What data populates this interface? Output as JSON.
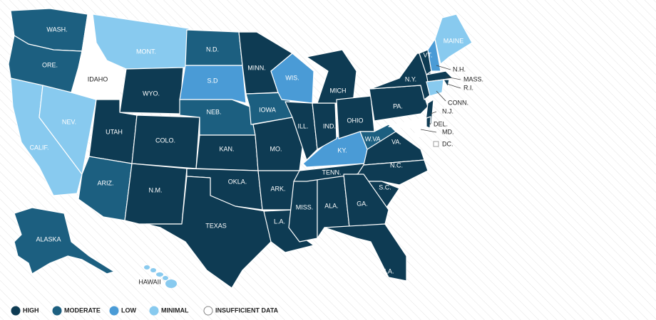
{
  "map": {
    "levels": [
      {
        "name": "HIGH",
        "color": "#0e3b53"
      },
      {
        "name": "MODERATE",
        "color": "#1c5f80"
      },
      {
        "name": "LOW",
        "color": "#4a9bd6"
      },
      {
        "name": "MINIMAL",
        "color": "#88caef"
      },
      {
        "name": "INSUFFICIENT DATA",
        "color": "#ffffff"
      }
    ],
    "states": [
      {
        "label": "WASH.",
        "level": "MODERATE"
      },
      {
        "label": "ORE.",
        "level": "MODERATE"
      },
      {
        "label": "CALIF.",
        "level": "MINIMAL"
      },
      {
        "label": "NEV.",
        "level": "MINIMAL"
      },
      {
        "label": "IDAHO",
        "level": "INSUFFICIENT DATA"
      },
      {
        "label": "MONT.",
        "level": "MINIMAL"
      },
      {
        "label": "WYO.",
        "level": "HIGH"
      },
      {
        "label": "UTAH",
        "level": "HIGH"
      },
      {
        "label": "ARIZ.",
        "level": "MODERATE"
      },
      {
        "label": "COLO.",
        "level": "HIGH"
      },
      {
        "label": "N.M.",
        "level": "HIGH"
      },
      {
        "label": "N.D.",
        "level": "MODERATE"
      },
      {
        "label": "S.D",
        "level": "LOW"
      },
      {
        "label": "NEB.",
        "level": "MODERATE"
      },
      {
        "label": "KAN.",
        "level": "HIGH"
      },
      {
        "label": "OKLA.",
        "level": "HIGH"
      },
      {
        "label": "TEXAS",
        "level": "HIGH"
      },
      {
        "label": "MINN.",
        "level": "HIGH"
      },
      {
        "label": "IOWA",
        "level": "MODERATE"
      },
      {
        "label": "MO.",
        "level": "HIGH"
      },
      {
        "label": "ARK.",
        "level": "HIGH"
      },
      {
        "label": "L.A.",
        "level": "HIGH"
      },
      {
        "label": "WIS.",
        "level": "LOW"
      },
      {
        "label": "ILL.",
        "level": "HIGH"
      },
      {
        "label": "MISS.",
        "level": "HIGH"
      },
      {
        "label": "ALA.",
        "level": "HIGH"
      },
      {
        "label": "TENN.",
        "level": "HIGH"
      },
      {
        "label": "KY.",
        "level": "LOW"
      },
      {
        "label": "IND.",
        "level": "HIGH"
      },
      {
        "label": "MICH",
        "level": "HIGH"
      },
      {
        "label": "OHIO",
        "level": "HIGH"
      },
      {
        "label": "W.VA.",
        "level": "MODERATE"
      },
      {
        "label": "VA.",
        "level": "HIGH"
      },
      {
        "label": "N.C.",
        "level": "HIGH"
      },
      {
        "label": "S.C.",
        "level": "HIGH"
      },
      {
        "label": "GA.",
        "level": "HIGH"
      },
      {
        "label": "FLA.",
        "level": "HIGH"
      },
      {
        "label": "PA.",
        "level": "HIGH"
      },
      {
        "label": "N.Y.",
        "level": "HIGH"
      },
      {
        "label": "N.J.",
        "level": "HIGH"
      },
      {
        "label": "MD.",
        "level": "INSUFFICIENT DATA"
      },
      {
        "label": "DEL.",
        "level": "HIGH"
      },
      {
        "label": "VT.",
        "level": "HIGH"
      },
      {
        "label": "N.H.",
        "level": "LOW"
      },
      {
        "label": "MAINE",
        "level": "MINIMAL"
      },
      {
        "label": "MASS.",
        "level": "HIGH"
      },
      {
        "label": "R.I.",
        "level": "HIGH"
      },
      {
        "label": "CONN.",
        "level": "MINIMAL"
      },
      {
        "label": "DC.",
        "level": "INSUFFICIENT DATA"
      },
      {
        "label": "ALASKA",
        "level": "MODERATE"
      },
      {
        "label": "HAWAII",
        "level": "MINIMAL"
      }
    ]
  }
}
